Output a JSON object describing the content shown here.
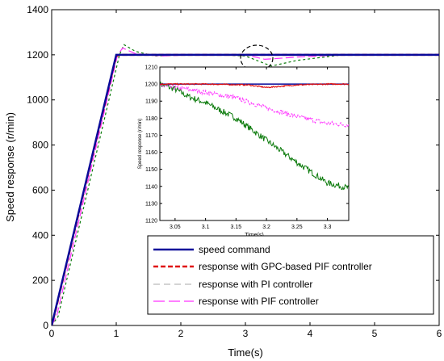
{
  "colors": {
    "speed_command": "#0a0a9a",
    "gpc_pif": "#e01010",
    "pi": "#bbbbbb",
    "pif": "#ff33ff",
    "inset_green": "#0a7a0a"
  },
  "chart_data": [
    {
      "type": "line",
      "xlabel": "Time(s)",
      "ylabel": "Speed response (r/min)",
      "xlim": [
        0,
        6
      ],
      "ylim": [
        0,
        1400
      ],
      "xticks": [
        "0",
        "1",
        "2",
        "3",
        "4",
        "5",
        "6"
      ],
      "yticks": [
        "0",
        "200",
        "400",
        "600",
        "800",
        "1000",
        "1200",
        "1400"
      ],
      "grid": false,
      "legend_position": "bottom-right",
      "series": [
        {
          "name": "speed command",
          "style": "solid",
          "x": [
            0,
            1,
            6
          ],
          "y": [
            0,
            1200,
            1200
          ]
        },
        {
          "name": "response with GPC-based PIF controller",
          "style": "dashed",
          "x": [
            0,
            0.05,
            1.0,
            1.05,
            6
          ],
          "y": [
            0,
            55,
            1195,
            1200,
            1200
          ]
        },
        {
          "name": "response with PI controller",
          "style": "dashed",
          "x": [
            0,
            0.1,
            1.05,
            1.12,
            1.3,
            1.6,
            2.0,
            2.6,
            3.0,
            3.4,
            3.8,
            4.5,
            6
          ],
          "y": [
            0,
            40,
            1200,
            1245,
            1215,
            1195,
            1200,
            1200,
            1195,
            1150,
            1175,
            1200,
            1200
          ]
        },
        {
          "name": "response with PIF controller",
          "style": "dashed",
          "x": [
            0,
            0.08,
            1.02,
            1.1,
            1.3,
            1.7,
            2.2,
            3.0,
            3.3,
            3.8,
            4.5,
            6
          ],
          "y": [
            0,
            45,
            1200,
            1230,
            1205,
            1195,
            1200,
            1200,
            1180,
            1190,
            1200,
            1200
          ]
        }
      ]
    },
    {
      "type": "line",
      "xlabel": "Time(s)",
      "ylabel": "Speed response (r/min)",
      "xlim": [
        3.025,
        3.335
      ],
      "ylim": [
        1120,
        1210
      ],
      "xticks": [
        "3.05",
        "3.1",
        "3.15",
        "3.2",
        "3.25",
        "3.3"
      ],
      "yticks": [
        "1120",
        "1130",
        "1140",
        "1150",
        "1160",
        "1170",
        "1180",
        "1190",
        "1200",
        "1210"
      ],
      "series": [
        {
          "name": "speed command",
          "x": [
            3.025,
            3.335
          ],
          "y": [
            1200,
            1200
          ]
        },
        {
          "name": "response with GPC-based PIF controller",
          "x": [
            3.025,
            3.1,
            3.17,
            3.2,
            3.25,
            3.3,
            3.335
          ],
          "y": [
            1200,
            1200,
            1199.5,
            1198,
            1199.5,
            1200,
            1200
          ]
        },
        {
          "name": "response with PIF controller",
          "x": [
            3.025,
            3.07,
            3.1,
            3.15,
            3.2,
            3.25,
            3.3,
            3.335
          ],
          "y": [
            1199,
            1197,
            1195,
            1192,
            1186,
            1181,
            1177,
            1176
          ]
        },
        {
          "name": "response with PI controller",
          "x": [
            3.025,
            3.05,
            3.07,
            3.1,
            3.15,
            3.2,
            3.25,
            3.3,
            3.335
          ],
          "y": [
            1200,
            1197,
            1193,
            1189,
            1180,
            1167,
            1154,
            1142,
            1139
          ]
        }
      ]
    }
  ],
  "legend": {
    "items": [
      "speed command",
      "response with GPC-based PIF controller",
      "response with PI controller",
      "response with PIF controller"
    ]
  }
}
